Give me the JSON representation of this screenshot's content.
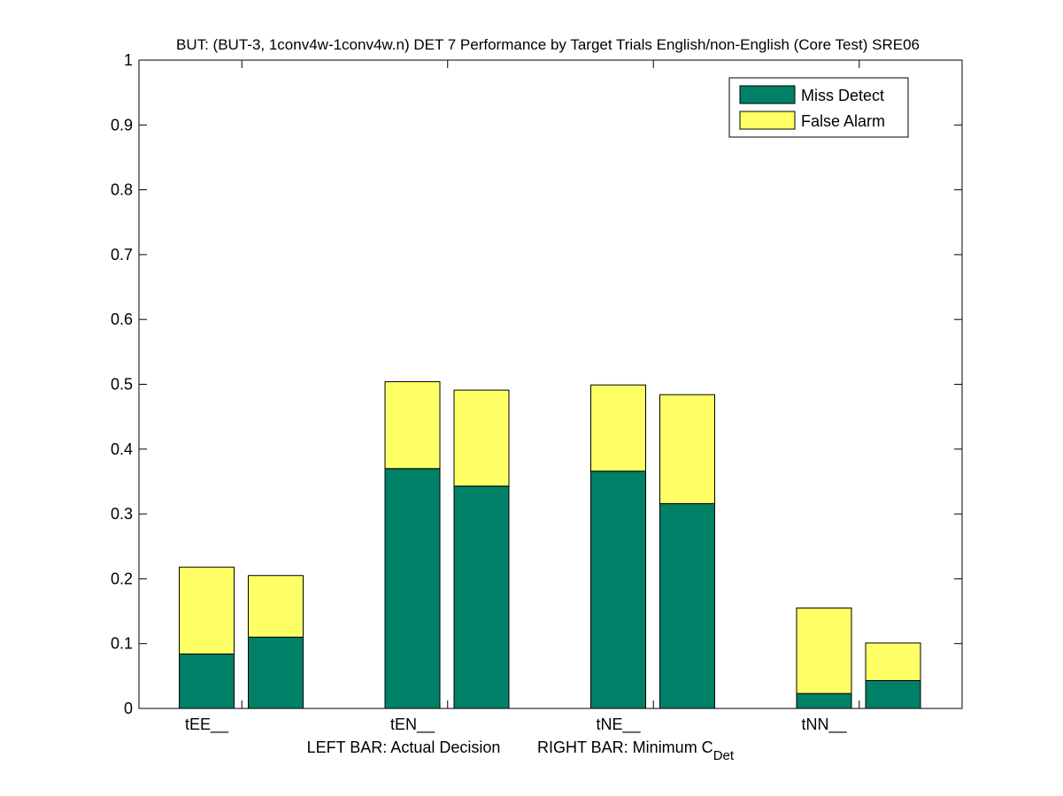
{
  "chart_data": {
    "type": "bar",
    "stacked": true,
    "title": "BUT: (BUT-3, 1conv4w-1conv4w.n) DET 7 Performance by Target Trials English/non-English (Core Test) SRE06",
    "xlabel": {
      "left": "LEFT BAR: Actual Decision",
      "right_prefix": "RIGHT BAR: Minimum C",
      "right_subscript": "Det"
    },
    "ylabel": "",
    "ylim": [
      0,
      1
    ],
    "yticks": [
      "0",
      "0.1",
      "0.2",
      "0.3",
      "0.4",
      "0.5",
      "0.6",
      "0.7",
      "0.8",
      "0.9",
      "1"
    ],
    "grid": false,
    "legend_position": "top-right",
    "categories": [
      "tEE__",
      "tEN__",
      "tNE__",
      "tNN__"
    ],
    "bars_per_category": [
      "Actual Decision",
      "Minimum C_Det"
    ],
    "series": [
      {
        "name": "Miss Detect",
        "color": "#008066",
        "actual": [
          0.084,
          0.37,
          0.366,
          0.023
        ],
        "minimum": [
          0.11,
          0.343,
          0.316,
          0.043
        ]
      },
      {
        "name": "False Alarm",
        "color": "#ffff66",
        "actual": [
          0.134,
          0.134,
          0.133,
          0.132
        ],
        "minimum": [
          0.095,
          0.148,
          0.168,
          0.058
        ]
      }
    ]
  }
}
